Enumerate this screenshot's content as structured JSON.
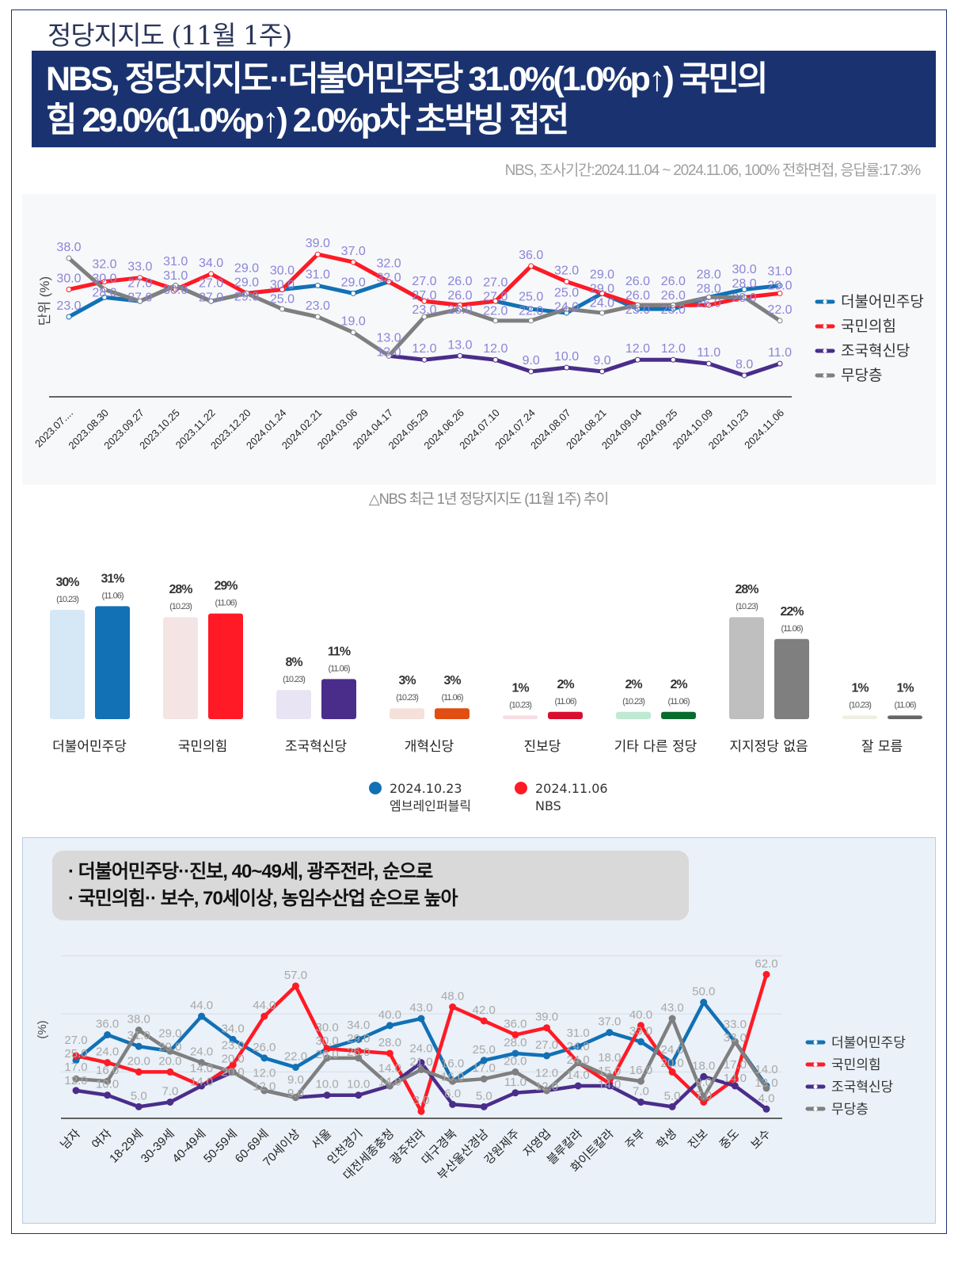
{
  "header": {
    "top_title": "정당지지도 (11월 1주)",
    "headline_line1": "NBS, 정당지지도··더불어민주당 31.0%(1.0%p↑) 국민의",
    "headline_line2": "힘 29.0%(1.0%p↑) 2.0%p차 초박빙 접전",
    "source": "NBS, 조사기간:2024.11.04 ~ 2024.11.06, 100% 전화면접, 응답률:17.3%",
    "caption": "△NBS 최근 1년 정당지지도 (11월 1주) 추이"
  },
  "callout": {
    "line1": "· 더불어민주당··진보, 40~49세, 광주전라, 순으로",
    "line2": "· 국민의힘·· 보수, 70세이상, 농임수산업 순으로 높아"
  },
  "colors": {
    "minjoo": "#1270b5",
    "ppp": "#ff1a25",
    "rebuild": "#4a2d8a",
    "none": "#7f7f7f",
    "navy": "#1a3370"
  },
  "chart_data": [
    {
      "type": "line",
      "ylabel": "단위 (%)",
      "x": [
        "2023.07....",
        "2023.08.30",
        "2023.09.27",
        "2023.10.25",
        "2023.11.22",
        "2023.12.20",
        "2024.01.24",
        "2024.02.21",
        "2024.03.06",
        "2024.04.17",
        "2024.05.29",
        "2024.06.26",
        "2024.07.10",
        "2024.07.24",
        "2024.08.07",
        "2024.08.21",
        "2024.09.04",
        "2024.09.25",
        "2024.10.09",
        "2024.10.23",
        "2024.11.06"
      ],
      "legend_position": "right",
      "series": [
        {
          "name": "더불어민주당",
          "color": "#1270b5",
          "values": [
            23,
            28,
            27,
            31,
            27,
            29,
            30,
            31,
            29,
            32,
            27,
            26,
            27,
            25,
            24,
            29,
            25,
            25,
            28,
            30,
            31
          ]
        },
        {
          "name": "국민의힘",
          "color": "#ff1a25",
          "values": [
            30,
            32,
            33,
            30,
            34,
            29,
            30,
            39,
            37,
            32,
            27,
            26,
            27,
            36,
            32,
            29,
            26,
            26,
            26,
            28,
            29
          ]
        },
        {
          "name": "조국혁신당",
          "color": "#4a2d8a",
          "values": [
            null,
            null,
            null,
            null,
            null,
            null,
            null,
            null,
            null,
            13,
            12,
            13,
            12,
            9,
            10,
            9,
            12,
            12,
            11,
            8,
            11
          ]
        },
        {
          "name": "무당층",
          "color": "#7f7f7f",
          "values": [
            38,
            30,
            27,
            31,
            27,
            29,
            25,
            23,
            19,
            13,
            23,
            25,
            22,
            22,
            25,
            24,
            26,
            26,
            28,
            28,
            22
          ]
        }
      ]
    },
    {
      "type": "bar",
      "categories": [
        "더불어민주당",
        "국민의힘",
        "조국혁신당",
        "개혁신당",
        "진보당",
        "기타 다른 정당",
        "지지정당 없음",
        "잘 모름"
      ],
      "date_labels": [
        "(10.23)",
        "(11.06)"
      ],
      "series": [
        {
          "name": "2024.10.23",
          "sub": "엠브레인퍼블릭",
          "color": "#1270b5",
          "values": [
            30,
            28,
            8,
            3,
            1,
            2,
            28,
            1
          ],
          "colors": [
            "#d6e7f5",
            "#f5e4e4",
            "#e8e4f4",
            "#f5e1da",
            "#f7dde2",
            "#bfe9d2",
            "#c0bfbf",
            "#efeee2"
          ]
        },
        {
          "name": "2024.11.06",
          "sub": "NBS",
          "color": "#ff1a25",
          "values": [
            31,
            29,
            11,
            3,
            2,
            2,
            22,
            1
          ],
          "colors": [
            "#1270b5",
            "#ff1a25",
            "#4a2d8a",
            "#e04e12",
            "#d80f2f",
            "#0a6b2e",
            "#7f7f7f",
            "#666666"
          ]
        }
      ]
    },
    {
      "type": "line",
      "ylabel": "(%)",
      "categories": [
        "남자",
        "여자",
        "18-29세",
        "30-39세",
        "40-49세",
        "50-59세",
        "60-69세",
        "70세이상",
        "서울",
        "인천경기",
        "대전세종충청",
        "광주전라",
        "대구경북",
        "부산울산경남",
        "강원제주",
        "자영업",
        "블루칼라",
        "화이트칼라",
        "주부",
        "학생",
        "진보",
        "중도",
        "보수"
      ],
      "legend_position": "right",
      "grid": true,
      "series": [
        {
          "name": "더불어민주당",
          "color": "#1270b5",
          "values": [
            25,
            36,
            31,
            29,
            44,
            34,
            26,
            22,
            30,
            34,
            40,
            43,
            16,
            25,
            28,
            27,
            31,
            37,
            33,
            24,
            50,
            33,
            14
          ]
        },
        {
          "name": "국민의힘",
          "color": "#ff1a25",
          "values": [
            27,
            24,
            20,
            20,
            14,
            23,
            44,
            57,
            30,
            29,
            28,
            3,
            48,
            42,
            36,
            39,
            24,
            15,
            40,
            20,
            7,
            17,
            62
          ]
        },
        {
          "name": "조국혁신당",
          "color": "#4a2d8a",
          "values": [
            12,
            10,
            5,
            7,
            14,
            20,
            12,
            9,
            10,
            10,
            14,
            24,
            6,
            5,
            11,
            12,
            14,
            14,
            7,
            5,
            18,
            14,
            4
          ]
        },
        {
          "name": "무당층",
          "color": "#7f7f7f",
          "values": [
            17,
            16,
            38,
            29,
            24,
            20,
            12,
            9,
            26,
            26,
            14,
            21,
            16,
            17,
            20,
            12,
            24,
            18,
            16,
            43,
            9,
            33,
            13
          ]
        }
      ]
    }
  ]
}
